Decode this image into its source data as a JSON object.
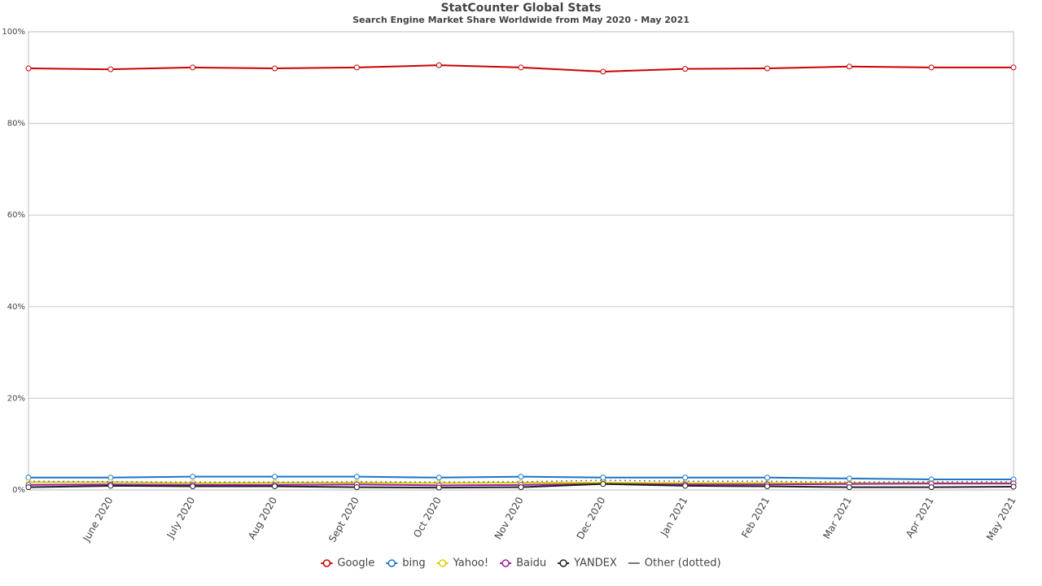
{
  "chart_data": {
    "type": "line",
    "title": "StatCounter Global Stats",
    "subtitle": "Search Engine Market Share Worldwide from May 2020 - May 2021",
    "categories": [
      null,
      "June 2020",
      "July 2020",
      "Aug 2020",
      "Sept 2020",
      "Oct 2020",
      "Nov 2020",
      "Dec 2020",
      "Jan 2021",
      "Feb 2021",
      "Mar 2021",
      "Apr 2021",
      "May 2021"
    ],
    "ylim": [
      0,
      100
    ],
    "yticks": [
      {
        "value": 0,
        "label": "0%"
      },
      {
        "value": 20,
        "label": "20%"
      },
      {
        "value": 40,
        "label": "40%"
      },
      {
        "value": 60,
        "label": "60%"
      },
      {
        "value": 80,
        "label": "80%"
      },
      {
        "value": 100,
        "label": "100%"
      }
    ],
    "grid": true,
    "legend": "bottom",
    "series": [
      {
        "name": "Google",
        "color": "#cc0000",
        "markers": true,
        "values": [
          92.0,
          91.8,
          92.2,
          92.0,
          92.2,
          92.7,
          92.2,
          91.3,
          91.9,
          92.0,
          92.4,
          92.2,
          92.2
        ]
      },
      {
        "name": "bing",
        "color": "#1b75c8",
        "markers": true,
        "values": [
          2.7,
          2.7,
          2.9,
          2.9,
          2.9,
          2.7,
          2.9,
          2.7,
          2.7,
          2.7,
          2.5,
          2.3,
          2.3
        ]
      },
      {
        "name": "Yahoo!",
        "color": "#d4d400",
        "markers": true,
        "values": [
          1.7,
          1.7,
          1.5,
          1.6,
          1.6,
          1.5,
          1.6,
          1.6,
          1.5,
          1.5,
          1.5,
          1.5,
          1.5
        ]
      },
      {
        "name": "Baidu",
        "color": "#9b1fa3",
        "markers": true,
        "values": [
          1.1,
          1.2,
          1.1,
          1.1,
          1.2,
          1.0,
          1.1,
          1.3,
          1.2,
          1.2,
          1.3,
          1.4,
          1.4
        ]
      },
      {
        "name": "YANDEX",
        "color": "#222222",
        "markers": true,
        "values": [
          0.6,
          0.9,
          0.8,
          0.8,
          0.6,
          0.5,
          0.6,
          1.3,
          0.9,
          0.8,
          0.6,
          0.6,
          0.7
        ]
      },
      {
        "name": "Other (dotted)",
        "color": "#777777",
        "markers": false,
        "dash": "dotted",
        "values": [
          1.9,
          1.8,
          1.7,
          1.7,
          1.8,
          1.7,
          1.8,
          2.1,
          1.9,
          1.9,
          1.7,
          1.8,
          1.8
        ]
      }
    ]
  }
}
